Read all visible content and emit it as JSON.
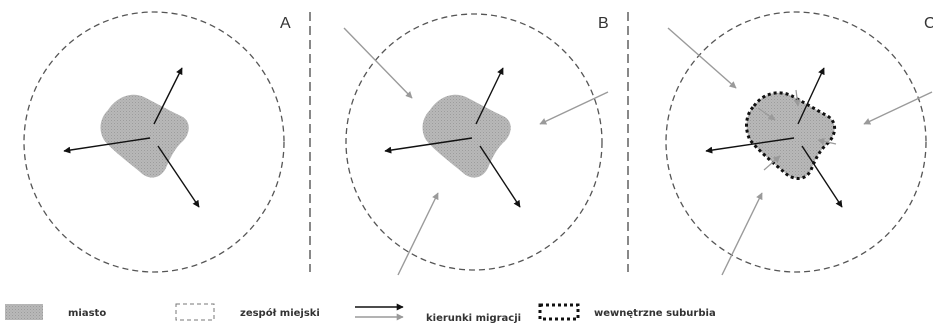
{
  "panels": [
    {
      "letter": "A"
    },
    {
      "letter": "B"
    },
    {
      "letter": "C"
    }
  ],
  "legend": {
    "city": "miasto",
    "agglomeration": "zespół miejski",
    "migration": "kierunki migracji",
    "suburbia": "wewnętrzne suburbia"
  },
  "colors": {
    "city_fill": "#b5b5b5",
    "outward_arrow": "#111111",
    "inward_arrow": "#9a9a9a",
    "dashed_line": "#555555",
    "suburbia_border": "#111111"
  }
}
